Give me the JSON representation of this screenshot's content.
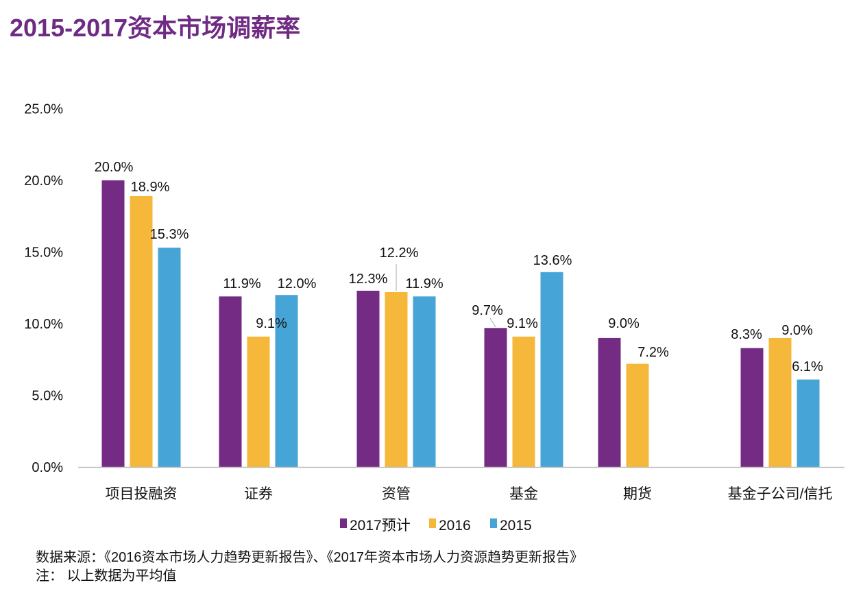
{
  "title": "2015-2017资本市场调薪率",
  "chart_data": {
    "type": "bar",
    "title": "2015-2017资本市场调薪率",
    "categories": [
      "项目投融资",
      "证券",
      "资管",
      "基金",
      "期货",
      "基金子公司/信托"
    ],
    "series": [
      {
        "name": "2017预计",
        "color": "#732b84",
        "values": [
          20.0,
          11.9,
          12.3,
          9.7,
          9.0,
          8.3
        ]
      },
      {
        "name": "2016",
        "color": "#f5b83a",
        "values": [
          18.9,
          9.1,
          12.2,
          9.1,
          7.2,
          9.0
        ]
      },
      {
        "name": "2015",
        "color": "#46a4d6",
        "values": [
          15.3,
          12.0,
          11.9,
          13.6,
          null,
          6.1
        ]
      }
    ],
    "ylim": [
      0,
      25
    ],
    "yticks": [
      0,
      5,
      10,
      15,
      20,
      25
    ],
    "ytick_labels": [
      "0.0%",
      "5.0%",
      "10.0%",
      "15.0%",
      "20.0%",
      "25.0%"
    ],
    "data_labels": [
      [
        "20.0%",
        "11.9%",
        "12.3%",
        "9.7%",
        "9.0%",
        "8.3%"
      ],
      [
        "18.9%",
        "9.1%",
        "12.2%",
        "9.1%",
        "7.2%",
        "9.0%"
      ],
      [
        "15.3%",
        "12.0%",
        "11.9%",
        "13.6%",
        null,
        "6.1%"
      ]
    ],
    "xlabel": "",
    "ylabel": "",
    "grid": false,
    "legend": "bottom"
  },
  "footer": {
    "source": "数据来源：《2016资本市场人力趋势更新报告》、《2017年资本市场人力资源趋势更新报告》",
    "note": "注： 以上数据为平均值"
  }
}
